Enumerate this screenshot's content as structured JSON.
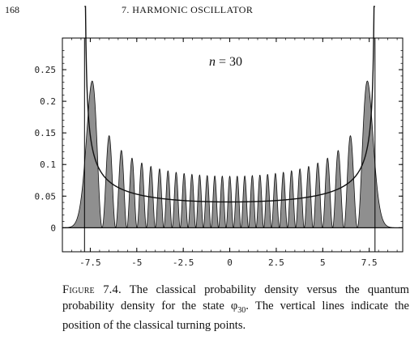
{
  "header": {
    "page_number": "168",
    "running_title": "7. HARMONIC OSCILLATOR"
  },
  "figure": {
    "annotation_n": "n",
    "annotation_eq": " = 30",
    "caption": {
      "label": "Figure 7.4.",
      "text_1": " The classical probability density versus the quantum probability density for the state ",
      "symbol": "φ",
      "subscript": "30",
      "text_2": ". The vertical lines indicate the position of the classical turning points."
    }
  },
  "chart_data": {
    "type": "area",
    "x_ticks": [
      -7.5,
      -5,
      -2.5,
      0,
      2.5,
      5,
      7.5
    ],
    "x_tick_labels": [
      "-7.5",
      "-5",
      "-2.5",
      "0",
      "2.5",
      "5",
      "7.5"
    ],
    "y_ticks": [
      0,
      0.05,
      0.1,
      0.15,
      0.2,
      0.25
    ],
    "y_tick_labels": [
      "0",
      "0.05",
      "0.1",
      "0.15",
      "0.2",
      "0.25"
    ],
    "xlim": [
      -9,
      9.3
    ],
    "ylim": [
      -0.038,
      0.3
    ],
    "quantum_state_n": 30,
    "turning_points": [
      -7.8102,
      7.8102
    ],
    "series": [
      {
        "kind": "quantum_density",
        "fill": "#8f8f8f",
        "stroke": "#111111"
      },
      {
        "kind": "classical_density",
        "stroke": "#111111"
      }
    ],
    "grid": false
  }
}
